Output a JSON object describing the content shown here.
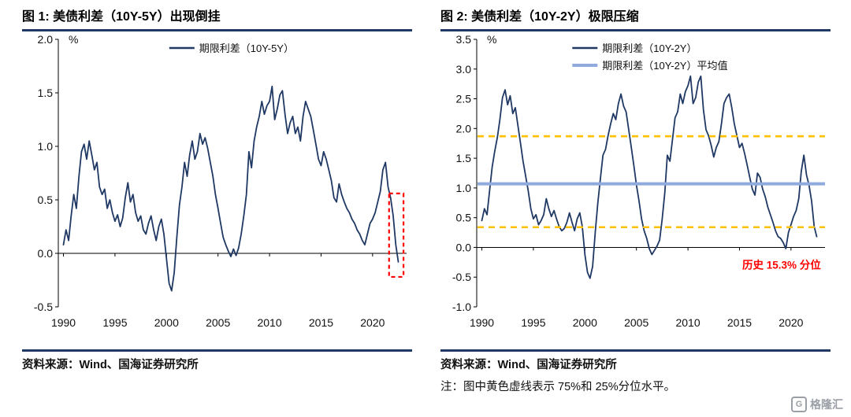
{
  "fig1": {
    "title": "图 1:  美债利差（10Y-5Y）出现倒挂",
    "source": "资料来源：Wind、国海证券研究所"
  },
  "fig2": {
    "title": "图 2:  美债利差（10Y-2Y）极限压缩",
    "source": "资料来源：Wind、国海证券研究所",
    "note": "注：图中黄色虚线表示 75%和 25%分位水平。"
  },
  "logo": {
    "icon": "G",
    "text": "格隆汇"
  },
  "colors": {
    "navy": "#1F3864",
    "light_blue": "#8FAADC",
    "yellow": "#FFC000",
    "red": "#FF0000"
  },
  "chart_data": [
    {
      "type": "line",
      "title": "美债利差（10Y-5Y）出现倒挂",
      "xlabel": "",
      "ylabel": "%",
      "unit_label": "%",
      "grid": false,
      "legend_position": "top-center",
      "ylim": [
        -0.5,
        2.0
      ],
      "ytick_step": 0.5,
      "xlim": [
        1989.5,
        2023.3
      ],
      "xticks": [
        1990,
        1995,
        2000,
        2005,
        2010,
        2015,
        2020
      ],
      "legend": [
        {
          "label": "期限利差（10Y-5Y）",
          "color": "#1F3864",
          "sample_width": 2.5
        }
      ],
      "series": [
        {
          "name": "期限利差（10Y-5Y）",
          "color": "#1F3864",
          "width": 1.8,
          "x_start": 1990,
          "x_step": 0.25,
          "y": [
            0.08,
            0.22,
            0.12,
            0.35,
            0.55,
            0.42,
            0.72,
            0.95,
            1.02,
            0.88,
            1.05,
            0.92,
            0.78,
            0.85,
            0.62,
            0.55,
            0.6,
            0.42,
            0.5,
            0.38,
            0.3,
            0.36,
            0.25,
            0.33,
            0.52,
            0.66,
            0.48,
            0.55,
            0.38,
            0.3,
            0.35,
            0.22,
            0.18,
            0.28,
            0.35,
            0.22,
            0.12,
            0.25,
            0.32,
            0.18,
            -0.05,
            -0.28,
            -0.35,
            -0.18,
            0.15,
            0.45,
            0.62,
            0.85,
            0.72,
            0.92,
            1.05,
            0.88,
            0.95,
            1.12,
            1.02,
            1.08,
            0.98,
            0.85,
            0.72,
            0.55,
            0.42,
            0.28,
            0.15,
            0.08,
            0.02,
            -0.03,
            0.04,
            -0.02,
            0.05,
            0.18,
            0.35,
            0.55,
            0.95,
            0.8,
            1.05,
            1.18,
            1.28,
            1.42,
            1.3,
            1.38,
            1.42,
            1.56,
            1.25,
            1.35,
            1.48,
            1.52,
            1.3,
            1.12,
            1.22,
            1.28,
            1.12,
            1.18,
            1.05,
            1.28,
            1.42,
            1.35,
            1.28,
            1.15,
            1.02,
            0.88,
            0.82,
            0.95,
            0.88,
            0.78,
            0.68,
            0.52,
            0.48,
            0.65,
            0.55,
            0.48,
            0.42,
            0.38,
            0.32,
            0.28,
            0.22,
            0.18,
            0.12,
            0.08,
            0.18,
            0.28,
            0.32,
            0.38,
            0.48,
            0.58,
            0.78,
            0.85,
            0.62,
            0.52,
            0.35,
            0.08,
            -0.08
          ]
        }
      ],
      "highlight_box": {
        "x0": 2021.6,
        "x1": 2023.0,
        "y0": -0.22,
        "y1": 0.56,
        "color": "#FF0000"
      }
    },
    {
      "type": "line",
      "title": "美债利差（10Y-2Y）极限压缩",
      "xlabel": "",
      "ylabel": "%",
      "unit_label": "%",
      "grid": false,
      "legend_position": "top-center",
      "ylim": [
        -1.0,
        3.5
      ],
      "ytick_step": 0.5,
      "xlim": [
        1989.5,
        2023.3
      ],
      "xticks": [
        1990,
        1995,
        2000,
        2005,
        2010,
        2015,
        2020
      ],
      "legend": [
        {
          "label": "期限利差（10Y-2Y）",
          "color": "#1F3864",
          "sample_width": 2.5
        },
        {
          "label": "期限利差（10Y-2Y）平均值",
          "color": "#8FAADC",
          "sample_width": 4
        }
      ],
      "series": [
        {
          "name": "期限利差（10Y-2Y）",
          "color": "#1F3864",
          "width": 1.8,
          "x_start": 1990,
          "x_step": 0.25,
          "y": [
            0.45,
            0.65,
            0.55,
            0.95,
            1.35,
            1.62,
            1.85,
            2.15,
            2.52,
            2.65,
            2.4,
            2.55,
            2.25,
            2.35,
            2.05,
            1.75,
            1.45,
            1.2,
            0.95,
            0.65,
            0.48,
            0.55,
            0.38,
            0.45,
            0.55,
            0.82,
            0.65,
            0.52,
            0.62,
            0.48,
            0.35,
            0.28,
            0.32,
            0.42,
            0.58,
            0.42,
            0.28,
            0.48,
            0.58,
            0.35,
            -0.12,
            -0.42,
            -0.52,
            -0.32,
            0.25,
            0.75,
            1.15,
            1.55,
            1.65,
            1.88,
            2.08,
            2.25,
            2.15,
            2.42,
            2.58,
            2.38,
            2.28,
            1.98,
            1.68,
            1.38,
            1.05,
            0.78,
            0.48,
            0.28,
            0.15,
            -0.02,
            -0.12,
            -0.05,
            0.02,
            0.12,
            0.48,
            0.92,
            1.55,
            1.45,
            1.82,
            2.18,
            2.28,
            2.58,
            2.42,
            2.62,
            2.72,
            2.88,
            2.42,
            2.52,
            2.78,
            2.88,
            2.32,
            1.98,
            1.88,
            1.72,
            1.52,
            1.68,
            1.78,
            2.08,
            2.42,
            2.52,
            2.58,
            2.35,
            2.08,
            1.88,
            1.68,
            1.75,
            1.58,
            1.38,
            1.18,
            0.98,
            0.88,
            1.25,
            1.18,
            0.98,
            0.85,
            0.68,
            0.55,
            0.42,
            0.28,
            0.18,
            0.15,
            0.08,
            -0.02,
            0.25,
            0.38,
            0.52,
            0.62,
            0.82,
            1.28,
            1.55,
            1.22,
            1.05,
            0.78,
            0.35,
            0.18
          ]
        }
      ],
      "hlines": [
        {
          "name": "mean-line",
          "y": 1.07,
          "color": "#8FAADC",
          "width": 4
        },
        {
          "name": "p75-line",
          "y": 1.87,
          "color": "#FFC000",
          "width": 2.6,
          "dash": "8,6"
        },
        {
          "name": "p25-line",
          "y": 0.34,
          "color": "#FFC000",
          "width": 2.6,
          "dash": "8,6"
        }
      ],
      "annotation": {
        "text": "历史 15.3% 分位",
        "x": 2022.9,
        "y": -0.36,
        "color": "#FF0000"
      }
    }
  ]
}
